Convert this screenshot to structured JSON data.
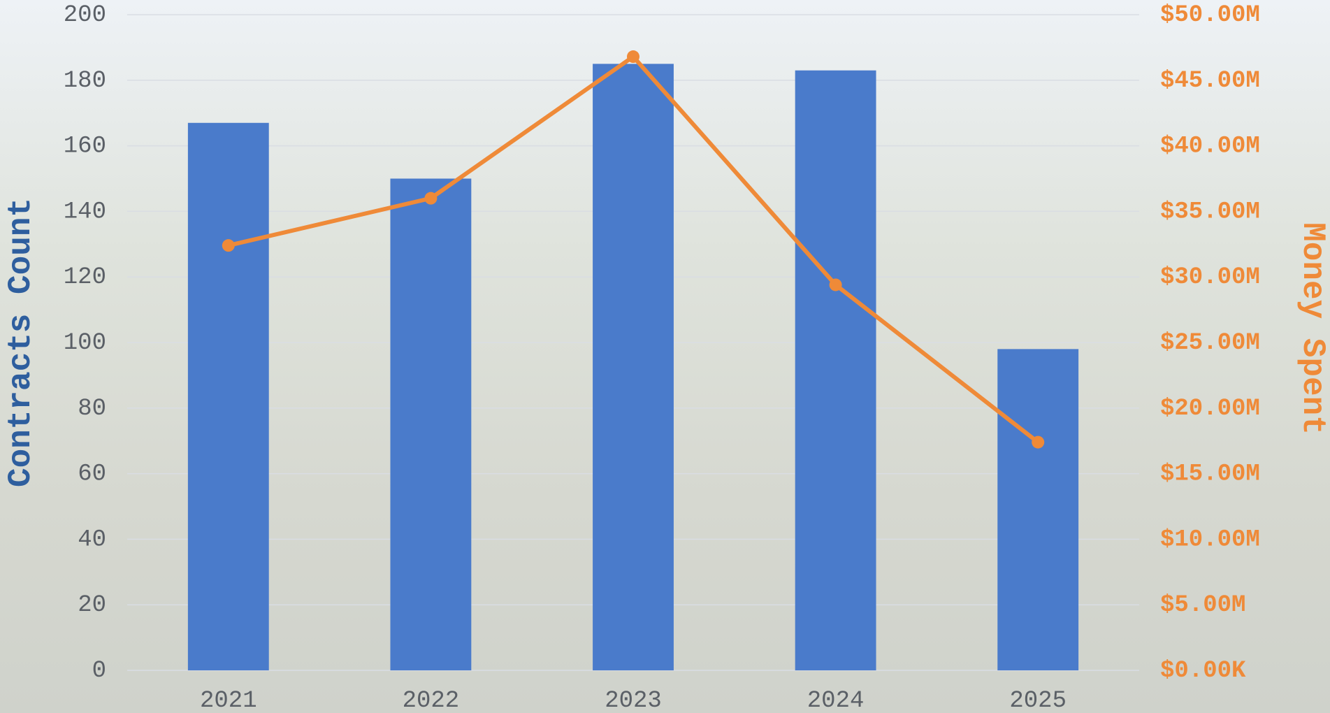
{
  "chart_data": {
    "type": "combo",
    "categories": [
      "2021",
      "2022",
      "2023",
      "2024",
      "2025"
    ],
    "series": [
      {
        "name": "Contracts Count",
        "type": "bar",
        "color": "#4a7bcb",
        "values": [
          167,
          150,
          185,
          183,
          98
        ]
      },
      {
        "name": "Money Spent",
        "type": "line",
        "axis": "y2",
        "color": "#ef8a38",
        "values": [
          32400000,
          36000000,
          46800000,
          29400000,
          17400000
        ]
      }
    ],
    "ylabel": "Contracts Count",
    "y2label": "Money Spent",
    "ylim": [
      0,
      200
    ],
    "yticks": [
      0,
      20,
      40,
      60,
      80,
      100,
      120,
      140,
      160,
      180,
      200
    ],
    "y2lim": [
      0,
      50000000
    ],
    "y2ticks": [
      {
        "value": 0,
        "label": "$0.00K"
      },
      {
        "value": 5000000,
        "label": "$5.00M"
      },
      {
        "value": 10000000,
        "label": "$10.00M"
      },
      {
        "value": 15000000,
        "label": "$15.00M"
      },
      {
        "value": 20000000,
        "label": "$20.00M"
      },
      {
        "value": 25000000,
        "label": "$25.00M"
      },
      {
        "value": 30000000,
        "label": "$30.00M"
      },
      {
        "value": 35000000,
        "label": "$35.00M"
      },
      {
        "value": 40000000,
        "label": "$40.00M"
      },
      {
        "value": 45000000,
        "label": "$45.00M"
      },
      {
        "value": 50000000,
        "label": "$50.00M"
      }
    ],
    "grid": true
  }
}
